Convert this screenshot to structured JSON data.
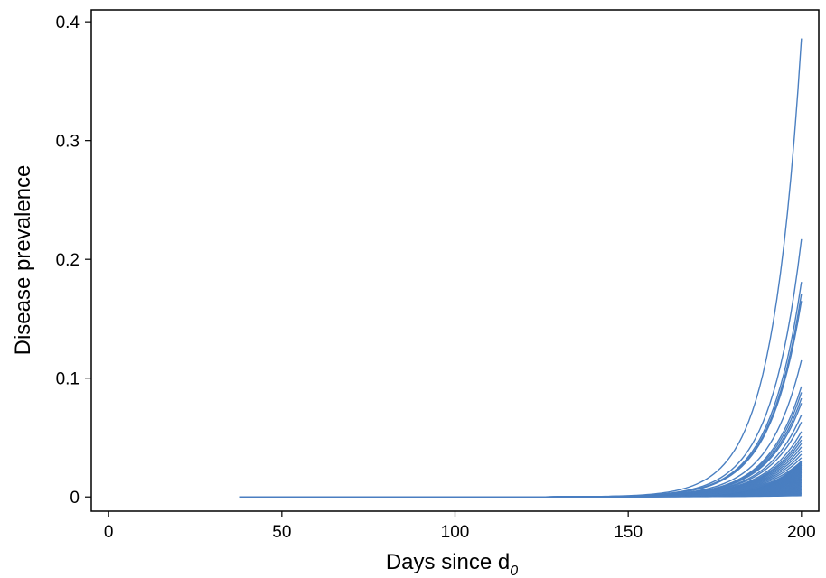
{
  "chart_data": {
    "type": "line",
    "title": "",
    "xlabel": "Days since d",
    "xlabel_subscript": "0",
    "ylabel": "Disease prevalence",
    "xlim": [
      -5,
      205
    ],
    "ylim": [
      -0.012,
      0.41
    ],
    "x_ticks": [
      0,
      50,
      100,
      150,
      200
    ],
    "x_tick_labels": [
      "0",
      "50",
      "100",
      "150",
      "200"
    ],
    "y_ticks": [
      0,
      0.1,
      0.2,
      0.3,
      0.4
    ],
    "y_tick_labels": [
      "0",
      "0.1",
      "0.2",
      "0.3",
      "0.4"
    ],
    "grid": false,
    "legend": "none",
    "line_color": "#4a7fc1",
    "x_start": 38,
    "x_end": 200,
    "series": [
      {
        "final_value": 0.386
      },
      {
        "final_value": 0.217
      },
      {
        "final_value": 0.181
      },
      {
        "final_value": 0.171
      },
      {
        "final_value": 0.165
      },
      {
        "final_value": 0.115
      },
      {
        "final_value": 0.093
      },
      {
        "final_value": 0.088
      },
      {
        "final_value": 0.083
      },
      {
        "final_value": 0.079
      },
      {
        "final_value": 0.069
      },
      {
        "final_value": 0.063
      },
      {
        "final_value": 0.055
      },
      {
        "final_value": 0.051
      },
      {
        "final_value": 0.048
      },
      {
        "final_value": 0.045
      },
      {
        "final_value": 0.042
      },
      {
        "final_value": 0.039
      },
      {
        "final_value": 0.036
      },
      {
        "final_value": 0.033
      },
      {
        "final_value": 0.03
      },
      {
        "final_value": 0.027
      },
      {
        "final_value": 0.024
      },
      {
        "final_value": 0.021
      },
      {
        "final_value": 0.018
      },
      {
        "final_value": 0.015
      },
      {
        "final_value": 0.012
      },
      {
        "final_value": 0.009
      },
      {
        "final_value": 0.006
      },
      {
        "final_value": 0.003
      }
    ]
  }
}
